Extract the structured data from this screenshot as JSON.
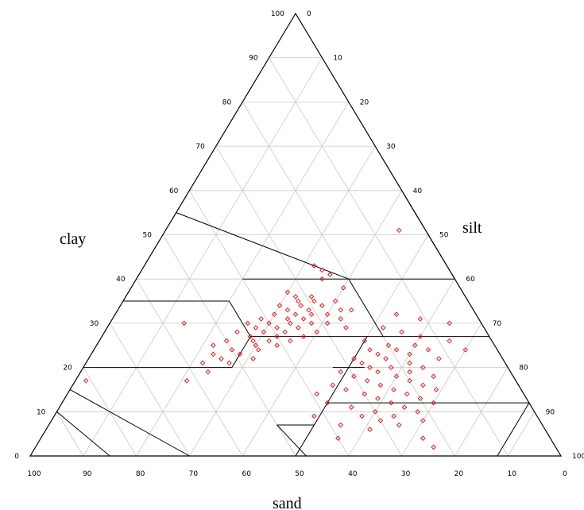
{
  "chart_data": {
    "type": "scatter",
    "subtype": "ternary",
    "axes": {
      "clay": {
        "label": "clay",
        "range": [
          0,
          100
        ],
        "ticks": [
          0,
          10,
          20,
          30,
          40,
          50,
          60,
          70,
          80,
          90,
          100
        ]
      },
      "silt": {
        "label": "silt",
        "range": [
          0,
          100
        ],
        "ticks": [
          0,
          10,
          20,
          30,
          40,
          50,
          60,
          70,
          80,
          90,
          100
        ]
      },
      "sand": {
        "label": "sand",
        "range": [
          0,
          100
        ],
        "ticks": [
          100,
          90,
          80,
          70,
          60,
          50,
          40,
          30,
          20,
          10,
          0
        ]
      }
    },
    "grid": true,
    "grid_step": 10,
    "boundaries_clay_silt": [
      [
        [
          55,
          0
        ],
        [
          40,
          40
        ]
      ],
      [
        [
          40,
          40
        ],
        [
          40,
          60
        ]
      ],
      [
        [
          40,
          20
        ],
        [
          40,
          40
        ]
      ],
      [
        [
          40,
          40
        ],
        [
          27,
          53
        ]
      ],
      [
        [
          35,
          0
        ],
        [
          35,
          20
        ]
      ],
      [
        [
          35,
          20
        ],
        [
          27,
          28
        ]
      ],
      [
        [
          20,
          0
        ],
        [
          20,
          28
        ]
      ],
      [
        [
          20,
          28
        ],
        [
          27,
          28
        ]
      ],
      [
        [
          27,
          28
        ],
        [
          27,
          73
        ]
      ],
      [
        [
          27,
          50
        ],
        [
          12,
          50
        ]
      ],
      [
        [
          12,
          50
        ],
        [
          0,
          50
        ]
      ],
      [
        [
          12,
          80
        ],
        [
          12,
          88
        ]
      ],
      [
        [
          12,
          88
        ],
        [
          0,
          88
        ]
      ],
      [
        [
          12,
          50
        ],
        [
          12,
          80
        ]
      ],
      [
        [
          15,
          0
        ],
        [
          0,
          30
        ]
      ],
      [
        [
          10,
          0
        ],
        [
          0,
          15
        ]
      ],
      [
        [
          7,
          43
        ],
        [
          7,
          50
        ]
      ],
      [
        [
          7,
          43
        ],
        [
          0,
          52
        ]
      ],
      [
        [
          20,
          53
        ],
        [
          20,
          47
        ]
      ],
      [
        [
          40,
          60
        ],
        [
          60,
          40
        ]
      ]
    ],
    "points": [
      {
        "clay": 51,
        "silt": 44
      },
      {
        "clay": 43,
        "silt": 32
      },
      {
        "clay": 42,
        "silt": 34
      },
      {
        "clay": 41,
        "silt": 36
      },
      {
        "clay": 40,
        "silt": 35
      },
      {
        "clay": 38,
        "silt": 40
      },
      {
        "clay": 37,
        "silt": 30
      },
      {
        "clay": 36,
        "silt": 32
      },
      {
        "clay": 36,
        "silt": 35
      },
      {
        "clay": 35,
        "silt": 33
      },
      {
        "clay": 35,
        "silt": 36
      },
      {
        "clay": 35,
        "silt": 40
      },
      {
        "clay": 34,
        "silt": 30
      },
      {
        "clay": 34,
        "silt": 34
      },
      {
        "clay": 34,
        "silt": 38
      },
      {
        "clay": 33,
        "silt": 32
      },
      {
        "clay": 33,
        "silt": 36
      },
      {
        "clay": 33,
        "silt": 42
      },
      {
        "clay": 33,
        "silt": 44
      },
      {
        "clay": 32,
        "silt": 30
      },
      {
        "clay": 32,
        "silt": 34
      },
      {
        "clay": 32,
        "silt": 37
      },
      {
        "clay": 32,
        "silt": 40
      },
      {
        "clay": 31,
        "silt": 28
      },
      {
        "clay": 31,
        "silt": 33
      },
      {
        "clay": 31,
        "silt": 36
      },
      {
        "clay": 31,
        "silt": 43
      },
      {
        "clay": 30,
        "silt": 26
      },
      {
        "clay": 30,
        "silt": 30
      },
      {
        "clay": 30,
        "silt": 34
      },
      {
        "clay": 30,
        "silt": 38
      },
      {
        "clay": 30,
        "silt": 41
      },
      {
        "clay": 30,
        "silt": 14
      },
      {
        "clay": 29,
        "silt": 28
      },
      {
        "clay": 29,
        "silt": 32
      },
      {
        "clay": 29,
        "silt": 36
      },
      {
        "clay": 29,
        "silt": 45
      },
      {
        "clay": 28,
        "silt": 25
      },
      {
        "clay": 28,
        "silt": 30
      },
      {
        "clay": 28,
        "silt": 34
      },
      {
        "clay": 28,
        "silt": 40
      },
      {
        "clay": 27,
        "silt": 28
      },
      {
        "clay": 27,
        "silt": 33
      },
      {
        "clay": 27,
        "silt": 38
      },
      {
        "clay": 26,
        "silt": 24
      },
      {
        "clay": 26,
        "silt": 29
      },
      {
        "clay": 26,
        "silt": 32
      },
      {
        "clay": 26,
        "silt": 36
      },
      {
        "clay": 25,
        "silt": 22
      },
      {
        "clay": 25,
        "silt": 30
      },
      {
        "clay": 25,
        "silt": 34
      },
      {
        "clay": 24,
        "silt": 26
      },
      {
        "clay": 24,
        "silt": 31
      },
      {
        "clay": 23,
        "silt": 23
      },
      {
        "clay": 23,
        "silt": 28
      },
      {
        "clay": 22,
        "silt": 25
      },
      {
        "clay": 22,
        "silt": 31
      },
      {
        "clay": 21,
        "silt": 22
      },
      {
        "clay": 21,
        "silt": 27
      },
      {
        "clay": 19,
        "silt": 24
      },
      {
        "clay": 17,
        "silt": 21
      },
      {
        "clay": 17,
        "silt": 2
      },
      {
        "clay": 32,
        "silt": 53
      },
      {
        "clay": 31,
        "silt": 58
      },
      {
        "clay": 30,
        "silt": 64
      },
      {
        "clay": 29,
        "silt": 52
      },
      {
        "clay": 28,
        "silt": 56
      },
      {
        "clay": 27,
        "silt": 60
      },
      {
        "clay": 26,
        "silt": 66
      },
      {
        "clay": 26,
        "silt": 50
      },
      {
        "clay": 25,
        "silt": 55
      },
      {
        "clay": 25,
        "silt": 60
      },
      {
        "clay": 24,
        "silt": 52
      },
      {
        "clay": 24,
        "silt": 57
      },
      {
        "clay": 24,
        "silt": 63
      },
      {
        "clay": 24,
        "silt": 70
      },
      {
        "clay": 23,
        "silt": 54
      },
      {
        "clay": 23,
        "silt": 60
      },
      {
        "clay": 22,
        "silt": 50
      },
      {
        "clay": 22,
        "silt": 56
      },
      {
        "clay": 22,
        "silt": 66
      },
      {
        "clay": 21,
        "silt": 52
      },
      {
        "clay": 21,
        "silt": 61
      },
      {
        "clay": 20,
        "silt": 54
      },
      {
        "clay": 20,
        "silt": 58
      },
      {
        "clay": 20,
        "silt": 64
      },
      {
        "clay": 19,
        "silt": 49
      },
      {
        "clay": 19,
        "silt": 56
      },
      {
        "clay": 19,
        "silt": 62
      },
      {
        "clay": 18,
        "silt": 52
      },
      {
        "clay": 18,
        "silt": 60
      },
      {
        "clay": 18,
        "silt": 67
      },
      {
        "clay": 17,
        "silt": 55
      },
      {
        "clay": 17,
        "silt": 63
      },
      {
        "clay": 16,
        "silt": 49
      },
      {
        "clay": 16,
        "silt": 58
      },
      {
        "clay": 16,
        "silt": 66
      },
      {
        "clay": 15,
        "silt": 52
      },
      {
        "clay": 15,
        "silt": 61
      },
      {
        "clay": 15,
        "silt": 69
      },
      {
        "clay": 14,
        "silt": 47
      },
      {
        "clay": 14,
        "silt": 56
      },
      {
        "clay": 14,
        "silt": 64
      },
      {
        "clay": 13,
        "silt": 59
      },
      {
        "clay": 13,
        "silt": 67
      },
      {
        "clay": 12,
        "silt": 50
      },
      {
        "clay": 12,
        "silt": 62
      },
      {
        "clay": 12,
        "silt": 70
      },
      {
        "clay": 11,
        "silt": 55
      },
      {
        "clay": 11,
        "silt": 65
      },
      {
        "clay": 10,
        "silt": 60
      },
      {
        "clay": 10,
        "silt": 68
      },
      {
        "clay": 9,
        "silt": 49
      },
      {
        "clay": 9,
        "silt": 58
      },
      {
        "clay": 9,
        "silt": 64
      },
      {
        "clay": 8,
        "silt": 62
      },
      {
        "clay": 8,
        "silt": 70
      },
      {
        "clay": 7,
        "silt": 55
      },
      {
        "clay": 7,
        "silt": 66
      },
      {
        "clay": 6,
        "silt": 61
      },
      {
        "clay": 4,
        "silt": 56
      },
      {
        "clay": 4,
        "silt": 72
      },
      {
        "clay": 2,
        "silt": 75
      }
    ]
  }
}
